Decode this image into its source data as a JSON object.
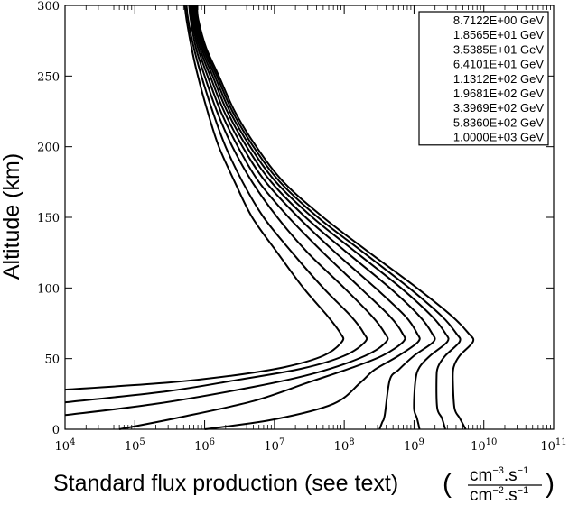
{
  "chart_data": {
    "type": "line",
    "title": "",
    "xlabel": "Standard flux production (see text)",
    "xunit": {
      "numerator": "cm",
      "num_exp": "−3",
      "num_tail": ".s",
      "num_tail_exp": "−1",
      "denominator": "cm",
      "den_exp": "−2",
      "den_tail": ".s",
      "den_tail_exp": "−1"
    },
    "ylabel": "Altitude (km)",
    "xscale": "log",
    "xlim": [
      10000.0,
      100000000000.0
    ],
    "ylim": [
      0,
      300
    ],
    "x_ticks": [
      {
        "base": "10",
        "exp": "4",
        "value": 10000.0
      },
      {
        "base": "10",
        "exp": "5",
        "value": 100000.0
      },
      {
        "base": "10",
        "exp": "6",
        "value": 1000000.0
      },
      {
        "base": "10",
        "exp": "7",
        "value": 10000000.0
      },
      {
        "base": "10",
        "exp": "8",
        "value": 100000000.0
      },
      {
        "base": "10",
        "exp": "9",
        "value": 1000000000.0
      },
      {
        "base": "10",
        "exp": "10",
        "value": 10000000000.0
      },
      {
        "base": "10",
        "exp": "11",
        "value": 100000000000.0
      }
    ],
    "y_ticks": [
      "0",
      "50",
      "100",
      "150",
      "200",
      "250",
      "300"
    ],
    "grid": false,
    "legend_position": "top-right",
    "series": [
      {
        "name": "8.7122E+00 GeV",
        "points": [
          [
            520000.0,
            300
          ],
          [
            550000.0,
            290
          ],
          [
            650000.0,
            270
          ],
          [
            800000.0,
            250
          ],
          [
            1100000.0,
            225
          ],
          [
            1600000.0,
            200
          ],
          [
            2700000.0,
            175
          ],
          [
            4800000.0,
            150
          ],
          [
            11000000.0,
            125
          ],
          [
            26000000.0,
            100
          ],
          [
            58000000.0,
            80
          ],
          [
            88000000.0,
            68
          ],
          [
            93000000.0,
            62
          ],
          [
            50000000.0,
            52
          ],
          [
            14000000.0,
            44
          ],
          [
            2500000.0,
            38
          ],
          [
            300000.0,
            33
          ],
          [
            10000.0,
            28
          ]
        ]
      },
      {
        "name": "1.8565E+01 GeV",
        "points": [
          [
            550000.0,
            300
          ],
          [
            580000.0,
            290
          ],
          [
            700000.0,
            270
          ],
          [
            900000.0,
            250
          ],
          [
            1300000.0,
            225
          ],
          [
            2000000.0,
            200
          ],
          [
            3500000.0,
            175
          ],
          [
            7000000.0,
            150
          ],
          [
            18000000.0,
            125
          ],
          [
            50000000.0,
            100
          ],
          [
            125000000.0,
            80
          ],
          [
            190000000.0,
            68
          ],
          [
            200000000.0,
            62
          ],
          [
            100000000.0,
            52
          ],
          [
            25000000.0,
            43
          ],
          [
            3000000.0,
            35
          ],
          [
            300000.0,
            27
          ],
          [
            10000.0,
            19
          ]
        ]
      },
      {
        "name": "3.5385E+01 GeV",
        "points": [
          [
            600000.0,
            300
          ],
          [
            630000.0,
            290
          ],
          [
            750000.0,
            270
          ],
          [
            1000000.0,
            250
          ],
          [
            1500000.0,
            225
          ],
          [
            2500000.0,
            200
          ],
          [
            4800000.0,
            175
          ],
          [
            11000000.0,
            150
          ],
          [
            30000000.0,
            125
          ],
          [
            100000000.0,
            100
          ],
          [
            250000000.0,
            80
          ],
          [
            380000000.0,
            68
          ],
          [
            400000000.0,
            62
          ],
          [
            200000000.0,
            52
          ],
          [
            40000000.0,
            40
          ],
          [
            5000000.0,
            30
          ],
          [
            200000.0,
            18
          ],
          [
            10000.0,
            10
          ]
        ]
      },
      {
        "name": "6.4101E+01 GeV",
        "points": [
          [
            630000.0,
            300
          ],
          [
            660000.0,
            290
          ],
          [
            800000.0,
            270
          ],
          [
            1100000.0,
            250
          ],
          [
            1700000.0,
            225
          ],
          [
            3000000.0,
            200
          ],
          [
            6000000.0,
            175
          ],
          [
            16000000.0,
            150
          ],
          [
            50000000.0,
            125
          ],
          [
            170000000.0,
            100
          ],
          [
            450000000.0,
            80
          ],
          [
            680000000.0,
            68
          ],
          [
            700000000.0,
            62
          ],
          [
            350000000.0,
            52
          ],
          [
            120000000.0,
            43
          ],
          [
            30000000.0,
            33
          ],
          [
            5000000.0,
            20
          ],
          [
            400000.0,
            8
          ],
          [
            60000.0,
            0
          ]
        ]
      },
      {
        "name": "1.1312E+02 GeV",
        "points": [
          [
            660000.0,
            300
          ],
          [
            690000.0,
            290
          ],
          [
            850000.0,
            270
          ],
          [
            1200000.0,
            250
          ],
          [
            1900000.0,
            225
          ],
          [
            3500000.0,
            200
          ],
          [
            7500000.0,
            175
          ],
          [
            22000000.0,
            150
          ],
          [
            75000000.0,
            125
          ],
          [
            280000000.0,
            100
          ],
          [
            750000000.0,
            80
          ],
          [
            1100000000.0,
            68
          ],
          [
            1150000000.0,
            62
          ],
          [
            600000000.0,
            52
          ],
          [
            270000000.0,
            42
          ],
          [
            170000000.0,
            33
          ],
          [
            70000000.0,
            18
          ],
          [
            10000000.0,
            7
          ],
          [
            1000000.0,
            0
          ]
        ]
      },
      {
        "name": "1.9681E+02 GeV",
        "points": [
          [
            690000.0,
            300
          ],
          [
            720000.0,
            290
          ],
          [
            900000.0,
            270
          ],
          [
            1300000.0,
            250
          ],
          [
            2100000.0,
            225
          ],
          [
            4000000.0,
            200
          ],
          [
            9000000.0,
            175
          ],
          [
            28000000.0,
            150
          ],
          [
            110000000.0,
            125
          ],
          [
            450000000.0,
            100
          ],
          [
            1200000000.0,
            80
          ],
          [
            1800000000.0,
            68
          ],
          [
            1900000000.0,
            62
          ],
          [
            1000000000.0,
            52
          ],
          [
            600000000.0,
            42
          ],
          [
            450000000.0,
            35
          ],
          [
            380000000.0,
            10
          ],
          [
            350000000.0,
            5
          ],
          [
            320000000.0,
            0
          ]
        ]
      },
      {
        "name": "3.3969E+02 GeV",
        "points": [
          [
            720000.0,
            300
          ],
          [
            750000.0,
            290
          ],
          [
            950000.0,
            270
          ],
          [
            1400000.0,
            250
          ],
          [
            2300000.0,
            225
          ],
          [
            4500000.0,
            200
          ],
          [
            10500000.0,
            175
          ],
          [
            35000000.0,
            150
          ],
          [
            150000000.0,
            125
          ],
          [
            650000000.0,
            100
          ],
          [
            1800000000.0,
            80
          ],
          [
            2800000000.0,
            68
          ],
          [
            3000000000.0,
            62
          ],
          [
            1700000000.0,
            52
          ],
          [
            1200000000.0,
            44
          ],
          [
            1050000000.0,
            35
          ],
          [
            1000000000.0,
            15
          ],
          [
            1100000000.0,
            8
          ],
          [
            1200000000.0,
            0
          ]
        ]
      },
      {
        "name": "5.8360E+02 GeV",
        "points": [
          [
            750000.0,
            300
          ],
          [
            780000.0,
            290
          ],
          [
            1000000.0,
            270
          ],
          [
            1500000.0,
            250
          ],
          [
            2500000.0,
            225
          ],
          [
            5000000.0,
            200
          ],
          [
            12000000.0,
            175
          ],
          [
            42000000.0,
            150
          ],
          [
            190000000.0,
            125
          ],
          [
            850000000.0,
            100
          ],
          [
            2500000000.0,
            80
          ],
          [
            4000000000.0,
            68
          ],
          [
            4500000000.0,
            62
          ],
          [
            2800000000.0,
            52
          ],
          [
            2200000000.0,
            44
          ],
          [
            2100000000.0,
            35
          ],
          [
            2150000000.0,
            15
          ],
          [
            2500000000.0,
            8
          ],
          [
            2800000000.0,
            0
          ]
        ]
      },
      {
        "name": "1.0000E+03 GeV",
        "points": [
          [
            780000.0,
            300
          ],
          [
            810000.0,
            290
          ],
          [
            1050000.0,
            270
          ],
          [
            1600000.0,
            250
          ],
          [
            2700000.0,
            225
          ],
          [
            5500000.0,
            200
          ],
          [
            13500000.0,
            175
          ],
          [
            50000000.0,
            150
          ],
          [
            230000000.0,
            125
          ],
          [
            1100000000.0,
            100
          ],
          [
            3500000000.0,
            80
          ],
          [
            6000000000.0,
            68
          ],
          [
            7000000000.0,
            62
          ],
          [
            4500000000.0,
            52
          ],
          [
            3700000000.0,
            44
          ],
          [
            3600000000.0,
            35
          ],
          [
            3800000000.0,
            15
          ],
          [
            4500000000.0,
            8
          ],
          [
            5500000000.0,
            0
          ]
        ]
      }
    ]
  }
}
